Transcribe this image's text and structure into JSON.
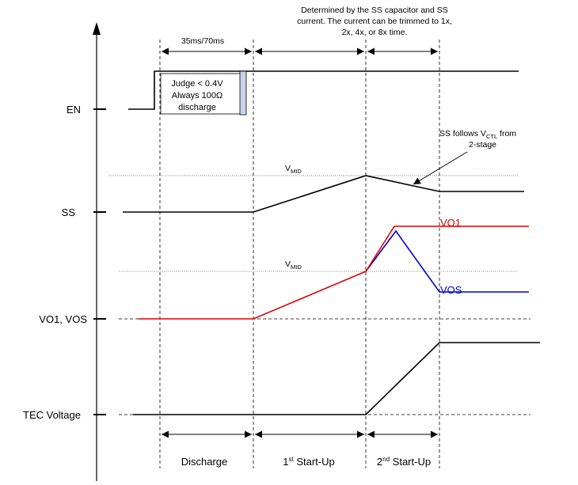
{
  "signals": {
    "en": "EN",
    "ss": "SS",
    "vo": "VO1, VOS",
    "tec": "TEC Voltage"
  },
  "top_timing": {
    "first": "35ms/70ms",
    "note_line1": "Determined by the SS capacitor and SS",
    "note_line2": "current. The current can be trimmed to 1x,",
    "note_line3": "2x, 4x, or 8x time."
  },
  "judge_box": {
    "line1": "Judge < 0.4V",
    "line2": "Always 100Ω",
    "line3": "discharge"
  },
  "annotations": {
    "ss_follows_pre": "SS follows V",
    "ss_follows_sub": "CTL",
    "ss_follows_post": " from",
    "ss_follows_line2": "2-stage",
    "vmid_main": "V",
    "vmid_sub": "MID"
  },
  "traces": {
    "vo1": "VO1",
    "vos": "VOS"
  },
  "phases": {
    "discharge": "Discharge",
    "first_num": "1",
    "first_sup": "st",
    "first_rest": " Start-Up",
    "second_num": "2",
    "second_sup": "nd",
    "second_rest": " Start-Up"
  },
  "colors": {
    "vo1": "#e00000",
    "vos": "#0000d0",
    "trace": "#000000",
    "judge_bar": "#c8d4e8"
  }
}
